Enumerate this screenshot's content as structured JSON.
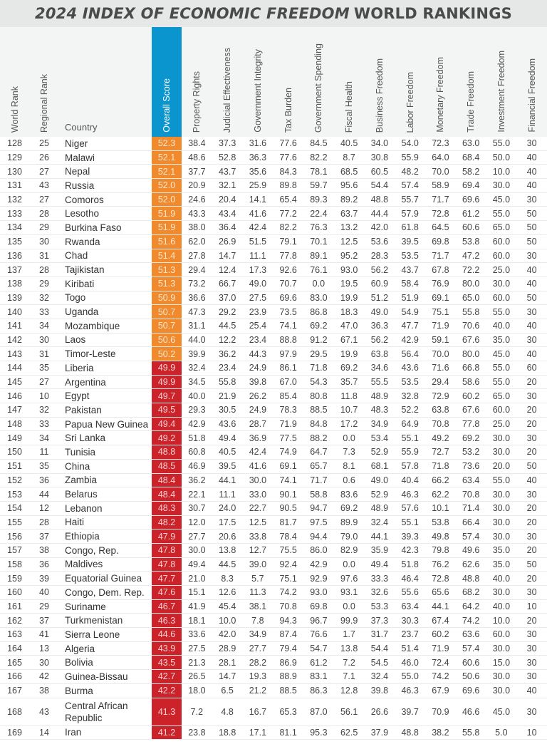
{
  "title": {
    "italic": "2024 INDEX OF ECONOMIC FREEDOM",
    "rest": "WORLD RANKINGS"
  },
  "colors": {
    "header_accent": "#0a95cf",
    "score_mostly_unfree": "#f08a2c",
    "score_repressed": "#cc2229"
  },
  "columns": [
    "World Rank",
    "Regional Rank",
    "Country",
    "Overall Score",
    "Property Rights",
    "Judicial Effectiveness",
    "Government Integrity",
    "Tax Burden",
    "Government Spending",
    "Fiscal Health",
    "Business Freedom",
    "Labor Freedom",
    "Monetary Freedom",
    "Trade Freedom",
    "Investment Freedom",
    "Financial Freedom"
  ],
  "rows": [
    [
      "128",
      "25",
      "Niger",
      "52.3",
      "38.4",
      "37.3",
      "31.6",
      "77.6",
      "84.5",
      "40.5",
      "34.0",
      "54.0",
      "72.3",
      "63.0",
      "55.0",
      "30"
    ],
    [
      "129",
      "26",
      "Malawi",
      "52.1",
      "48.6",
      "52.8",
      "36.3",
      "77.6",
      "82.2",
      "8.7",
      "30.8",
      "55.9",
      "64.0",
      "68.4",
      "50.0",
      "40"
    ],
    [
      "130",
      "27",
      "Nepal",
      "52.1",
      "37.7",
      "43.7",
      "35.6",
      "84.3",
      "78.1",
      "68.5",
      "60.5",
      "48.2",
      "70.0",
      "58.2",
      "10.0",
      "40"
    ],
    [
      "131",
      "43",
      "Russia",
      "52.0",
      "20.9",
      "32.1",
      "25.9",
      "89.8",
      "59.7",
      "95.6",
      "54.4",
      "57.4",
      "58.9",
      "69.4",
      "30.0",
      "40"
    ],
    [
      "132",
      "27",
      "Comoros",
      "52.0",
      "24.6",
      "20.4",
      "14.1",
      "65.4",
      "89.3",
      "89.2",
      "48.8",
      "55.7",
      "71.7",
      "69.6",
      "45.0",
      "30"
    ],
    [
      "133",
      "28",
      "Lesotho",
      "51.9",
      "43.3",
      "43.4",
      "41.6",
      "77.2",
      "22.4",
      "63.7",
      "44.4",
      "57.9",
      "72.8",
      "61.2",
      "55.0",
      "50"
    ],
    [
      "134",
      "29",
      "Burkina Faso",
      "51.9",
      "38.0",
      "36.4",
      "42.4",
      "82.2",
      "76.3",
      "13.2",
      "42.0",
      "61.8",
      "64.5",
      "60.6",
      "65.0",
      "50"
    ],
    [
      "135",
      "30",
      "Rwanda",
      "51.6",
      "62.0",
      "26.9",
      "51.5",
      "79.1",
      "70.1",
      "12.5",
      "53.6",
      "39.5",
      "69.8",
      "53.8",
      "60.0",
      "50"
    ],
    [
      "136",
      "31",
      "Chad",
      "51.4",
      "27.8",
      "14.7",
      "11.1",
      "77.8",
      "89.1",
      "95.2",
      "28.3",
      "53.5",
      "71.7",
      "47.2",
      "60.0",
      "30"
    ],
    [
      "137",
      "28",
      "Tajikistan",
      "51.3",
      "29.4",
      "12.4",
      "17.3",
      "92.6",
      "76.1",
      "93.0",
      "56.2",
      "43.7",
      "67.8",
      "72.2",
      "25.0",
      "40"
    ],
    [
      "138",
      "29",
      "Kiribati",
      "51.3",
      "73.2",
      "66.7",
      "49.0",
      "70.7",
      "0.0",
      "19.5",
      "60.9",
      "58.4",
      "76.9",
      "80.0",
      "30.0",
      "40"
    ],
    [
      "139",
      "32",
      "Togo",
      "50.9",
      "36.6",
      "37.0",
      "27.5",
      "69.6",
      "83.0",
      "19.9",
      "51.2",
      "51.9",
      "69.1",
      "65.0",
      "60.0",
      "50"
    ],
    [
      "140",
      "33",
      "Uganda",
      "50.7",
      "47.3",
      "29.2",
      "23.9",
      "73.5",
      "86.8",
      "18.3",
      "49.0",
      "54.9",
      "75.1",
      "55.8",
      "55.0",
      "30"
    ],
    [
      "141",
      "34",
      "Mozambique",
      "50.7",
      "31.1",
      "44.5",
      "25.4",
      "74.1",
      "69.2",
      "47.0",
      "36.3",
      "47.7",
      "71.9",
      "70.6",
      "40.0",
      "40"
    ],
    [
      "142",
      "30",
      "Laos",
      "50.6",
      "44.0",
      "12.2",
      "23.4",
      "88.8",
      "91.2",
      "67.1",
      "56.2",
      "42.9",
      "59.1",
      "67.6",
      "35.0",
      "30"
    ],
    [
      "143",
      "31",
      "Timor-Leste",
      "50.2",
      "39.9",
      "36.2",
      "44.3",
      "97.9",
      "29.5",
      "19.9",
      "63.8",
      "56.4",
      "70.0",
      "80.0",
      "45.0",
      "40"
    ],
    [
      "144",
      "35",
      "Liberia",
      "49.9",
      "32.4",
      "23.4",
      "24.9",
      "86.1",
      "71.8",
      "69.2",
      "34.6",
      "43.6",
      "71.6",
      "66.8",
      "55.0",
      "60"
    ],
    [
      "145",
      "27",
      "Argentina",
      "49.9",
      "34.5",
      "55.8",
      "39.8",
      "67.0",
      "54.3",
      "35.7",
      "55.5",
      "53.5",
      "29.4",
      "58.6",
      "55.0",
      "20"
    ],
    [
      "146",
      "10",
      "Egypt",
      "49.7",
      "40.0",
      "21.9",
      "26.2",
      "85.4",
      "80.8",
      "11.8",
      "48.9",
      "32.8",
      "72.9",
      "60.2",
      "65.0",
      "30"
    ],
    [
      "147",
      "32",
      "Pakistan",
      "49.5",
      "29.3",
      "30.5",
      "24.9",
      "78.3",
      "88.5",
      "10.7",
      "48.3",
      "52.2",
      "63.8",
      "67.6",
      "60.0",
      "20"
    ],
    [
      "148",
      "33",
      "Papua New Guinea",
      "49.4",
      "42.9",
      "43.6",
      "28.7",
      "71.9",
      "84.8",
      "17.2",
      "34.9",
      "64.9",
      "70.8",
      "77.8",
      "25.0",
      "20"
    ],
    [
      "149",
      "34",
      "Sri Lanka",
      "49.2",
      "51.8",
      "49.4",
      "36.9",
      "77.5",
      "88.2",
      "0.0",
      "53.4",
      "55.1",
      "49.2",
      "69.2",
      "30.0",
      "30"
    ],
    [
      "150",
      "11",
      "Tunisia",
      "48.8",
      "60.8",
      "40.5",
      "42.4",
      "74.9",
      "64.7",
      "7.3",
      "52.9",
      "55.9",
      "72.7",
      "53.2",
      "30.0",
      "20"
    ],
    [
      "151",
      "35",
      "China",
      "48.5",
      "46.9",
      "39.5",
      "41.6",
      "69.1",
      "65.7",
      "8.1",
      "68.1",
      "57.8",
      "71.8",
      "73.6",
      "20.0",
      "50"
    ],
    [
      "152",
      "36",
      "Zambia",
      "48.4",
      "36.2",
      "44.1",
      "30.0",
      "74.1",
      "71.7",
      "0.6",
      "49.0",
      "40.4",
      "66.2",
      "63.4",
      "55.0",
      "40"
    ],
    [
      "153",
      "44",
      "Belarus",
      "48.4",
      "22.1",
      "11.1",
      "33.0",
      "90.1",
      "58.8",
      "83.6",
      "52.9",
      "46.3",
      "62.2",
      "70.8",
      "30.0",
      "30"
    ],
    [
      "154",
      "12",
      "Lebanon",
      "48.3",
      "30.7",
      "24.0",
      "22.7",
      "90.5",
      "94.7",
      "69.2",
      "48.9",
      "57.6",
      "10.1",
      "71.4",
      "30.0",
      "20"
    ],
    [
      "155",
      "28",
      "Haiti",
      "48.2",
      "12.0",
      "17.5",
      "12.5",
      "81.7",
      "97.5",
      "89.9",
      "32.4",
      "55.1",
      "53.8",
      "66.4",
      "30.0",
      "20"
    ],
    [
      "156",
      "37",
      "Ethiopia",
      "47.9",
      "27.7",
      "20.6",
      "33.8",
      "78.4",
      "94.4",
      "79.0",
      "44.1",
      "39.3",
      "49.8",
      "57.4",
      "30.0",
      "30"
    ],
    [
      "157",
      "38",
      "Congo, Rep.",
      "47.8",
      "30.0",
      "13.8",
      "12.7",
      "75.5",
      "86.0",
      "82.9",
      "35.9",
      "42.3",
      "79.8",
      "49.6",
      "35.0",
      "20"
    ],
    [
      "158",
      "36",
      "Maldives",
      "47.8",
      "49.4",
      "44.5",
      "39.0",
      "92.4",
      "42.9",
      "0.0",
      "49.4",
      "51.8",
      "76.2",
      "62.6",
      "35.0",
      "50"
    ],
    [
      "159",
      "39",
      "Equatorial Guinea",
      "47.7",
      "21.0",
      "8.3",
      "5.7",
      "75.1",
      "92.9",
      "97.6",
      "33.3",
      "46.4",
      "72.8",
      "48.8",
      "40.0",
      "20"
    ],
    [
      "160",
      "40",
      "Congo, Dem. Rep.",
      "47.6",
      "15.1",
      "12.6",
      "11.3",
      "74.2",
      "93.0",
      "93.1",
      "32.6",
      "55.6",
      "65.6",
      "68.2",
      "30.0",
      "30"
    ],
    [
      "161",
      "29",
      "Suriname",
      "46.7",
      "41.9",
      "45.4",
      "38.1",
      "70.8",
      "69.8",
      "0.0",
      "53.3",
      "63.4",
      "44.1",
      "64.2",
      "40.0",
      "10"
    ],
    [
      "162",
      "37",
      "Turkmenistan",
      "46.3",
      "18.1",
      "10.0",
      "7.8",
      "94.3",
      "96.7",
      "99.9",
      "37.3",
      "30.3",
      "67.4",
      "74.2",
      "10.0",
      "20"
    ],
    [
      "163",
      "41",
      "Sierra Leone",
      "44.6",
      "33.6",
      "42.0",
      "34.9",
      "87.4",
      "76.6",
      "1.7",
      "31.7",
      "23.7",
      "60.2",
      "63.6",
      "60.0",
      "30"
    ],
    [
      "164",
      "13",
      "Algeria",
      "43.9",
      "27.5",
      "28.9",
      "27.7",
      "79.4",
      "54.7",
      "13.8",
      "54.4",
      "51.4",
      "71.9",
      "57.4",
      "30.0",
      "30"
    ],
    [
      "165",
      "30",
      "Bolivia",
      "43.5",
      "21.3",
      "28.1",
      "28.2",
      "86.9",
      "61.2",
      "7.2",
      "54.5",
      "46.0",
      "72.4",
      "60.6",
      "15.0",
      "30"
    ],
    [
      "166",
      "42",
      "Guinea-Bissau",
      "42.7",
      "26.5",
      "14.7",
      "19.3",
      "88.9",
      "83.1",
      "7.1",
      "32.4",
      "55.0",
      "74.2",
      "50.6",
      "30.0",
      "30"
    ],
    [
      "167",
      "38",
      "Burma",
      "42.2",
      "18.0",
      "6.5",
      "21.2",
      "88.5",
      "86.3",
      "12.8",
      "39.8",
      "46.3",
      "67.9",
      "69.6",
      "30.0",
      "40"
    ],
    [
      "168",
      "43",
      "Central African Republic",
      "41.3",
      "7.2",
      "4.8",
      "16.7",
      "65.3",
      "87.0",
      "56.1",
      "26.6",
      "39.7",
      "70.9",
      "46.6",
      "45.0",
      "30"
    ],
    [
      "169",
      "14",
      "Iran",
      "41.2",
      "23.8",
      "18.8",
      "17.1",
      "81.1",
      "95.3",
      "62.5",
      "37.9",
      "48.8",
      "38.2",
      "55.8",
      "5.0",
      "10"
    ]
  ]
}
